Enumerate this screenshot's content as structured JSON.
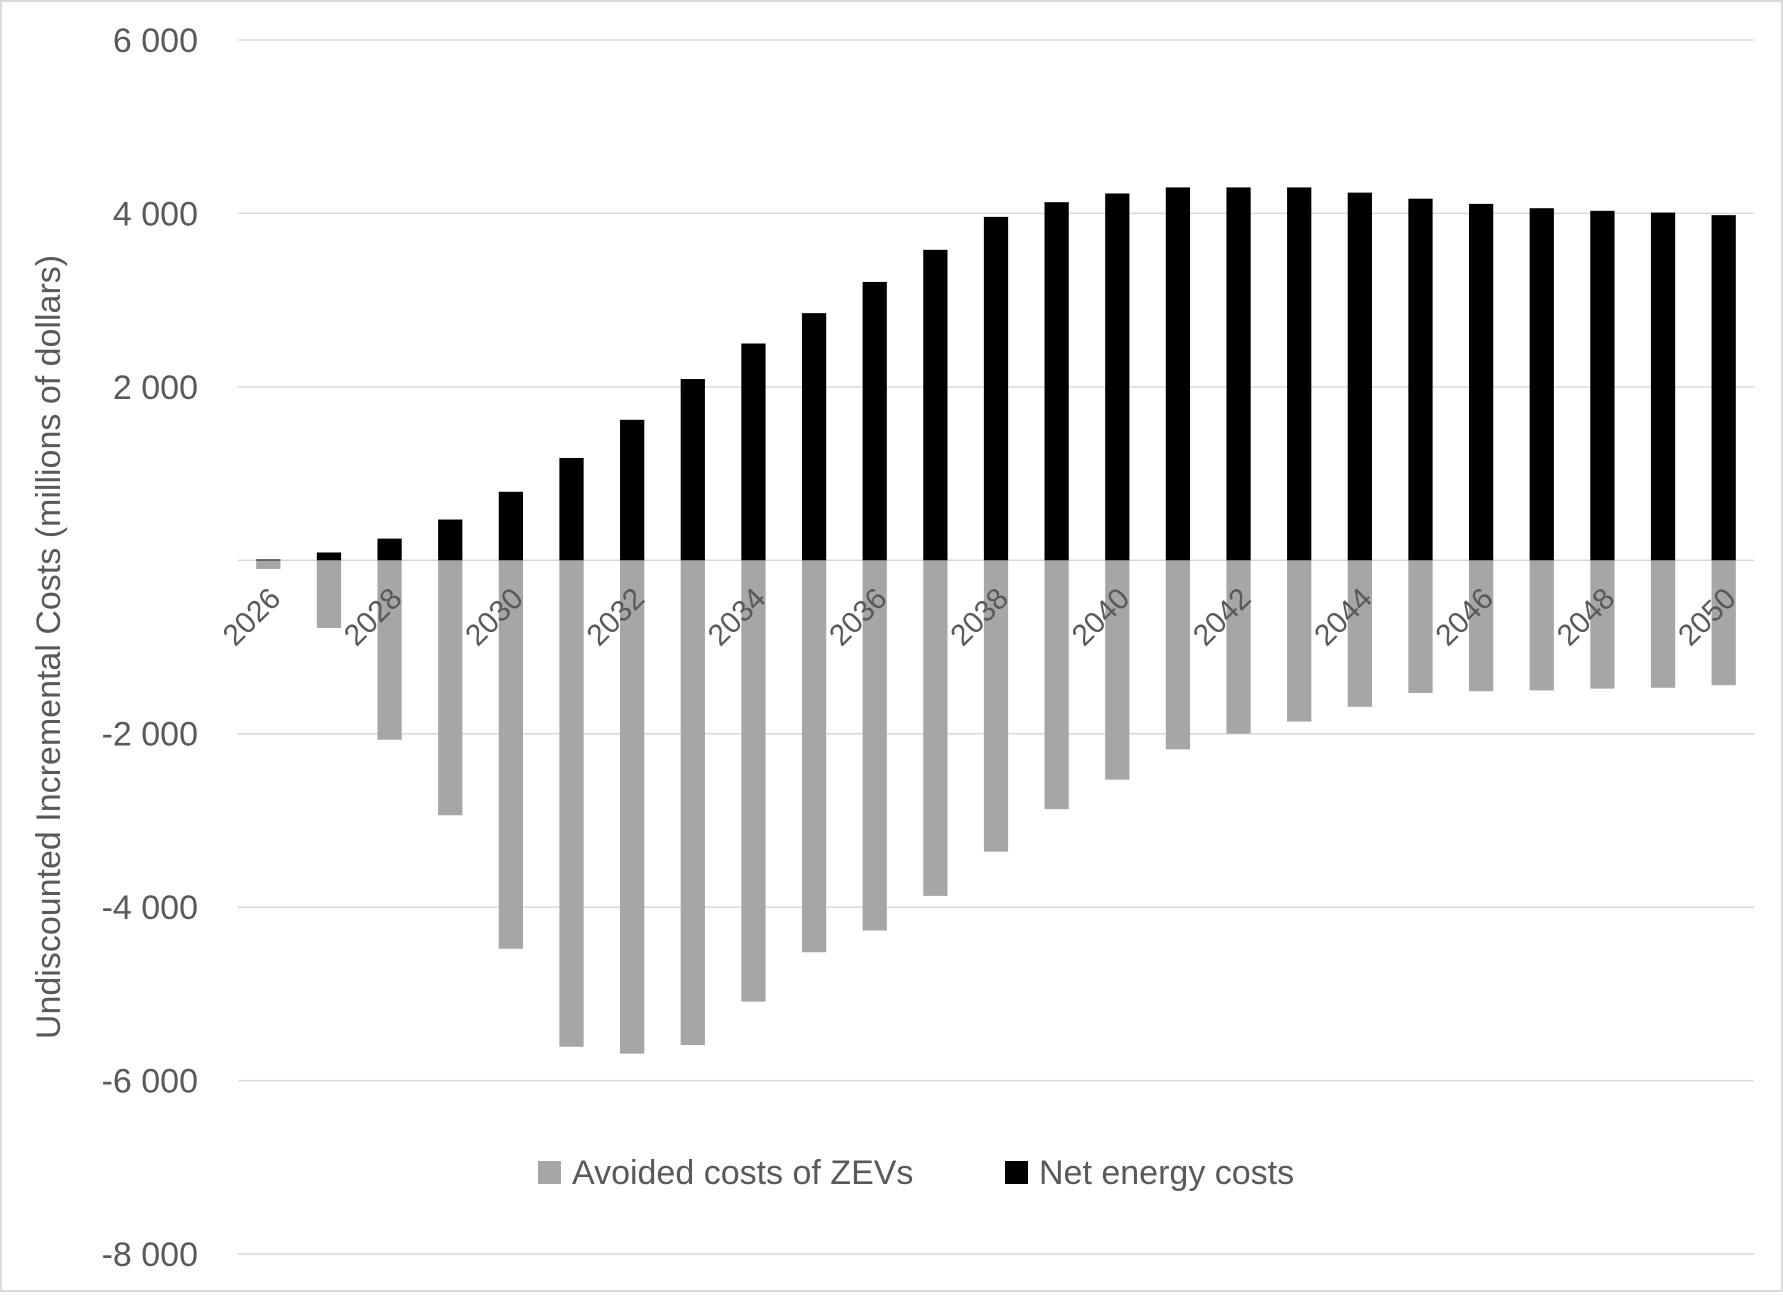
{
  "colors": {
    "avoided": "#a6a6a6",
    "net": "#000000",
    "grid": "#d9d9d9",
    "text": "#595959"
  },
  "chart_data": {
    "type": "bar",
    "title": "",
    "xlabel": "",
    "ylabel": "Undiscounted Incremental Costs (millions of dollars)",
    "ylim": [
      -8000,
      6000
    ],
    "yticks": [
      6000,
      4000,
      2000,
      0,
      -2000,
      -4000,
      -6000,
      -8000
    ],
    "ytick_labels": [
      "6 000",
      "4 000",
      "2 000",
      "",
      "-2 000",
      "-4 000",
      "-6 000",
      "-8 000"
    ],
    "categories": [
      "2026",
      "2027",
      "2028",
      "2029",
      "2030",
      "2031",
      "2032",
      "2033",
      "2034",
      "2035",
      "2036",
      "2037",
      "2038",
      "2039",
      "2040",
      "2041",
      "2042",
      "2043",
      "2044",
      "2045",
      "2046",
      "2047",
      "2048",
      "2049",
      "2050"
    ],
    "shown_category_labels": [
      "2026",
      "2028",
      "2030",
      "2032",
      "2034",
      "2036",
      "2038",
      "2040",
      "2042",
      "2044",
      "2046",
      "2048",
      "2050"
    ],
    "grid": true,
    "legend_position": "bottom",
    "series": [
      {
        "name": "Avoided costs of ZEVs",
        "color": "#a6a6a6",
        "values": [
          -100,
          -780,
          -2070,
          -2940,
          -4480,
          -5610,
          -5690,
          -5590,
          -5090,
          -4520,
          -4270,
          -3870,
          -3360,
          -2870,
          -2530,
          -2180,
          -2000,
          -1860,
          -1690,
          -1530,
          -1510,
          -1500,
          -1480,
          -1470,
          -1440
        ]
      },
      {
        "name": "Net energy costs",
        "color": "#000000",
        "values": [
          10,
          90,
          250,
          470,
          790,
          1180,
          1620,
          2090,
          2500,
          2850,
          3210,
          3580,
          3960,
          4130,
          4230,
          4300,
          4300,
          4300,
          4240,
          4170,
          4110,
          4060,
          4030,
          4010,
          3980
        ]
      }
    ]
  }
}
